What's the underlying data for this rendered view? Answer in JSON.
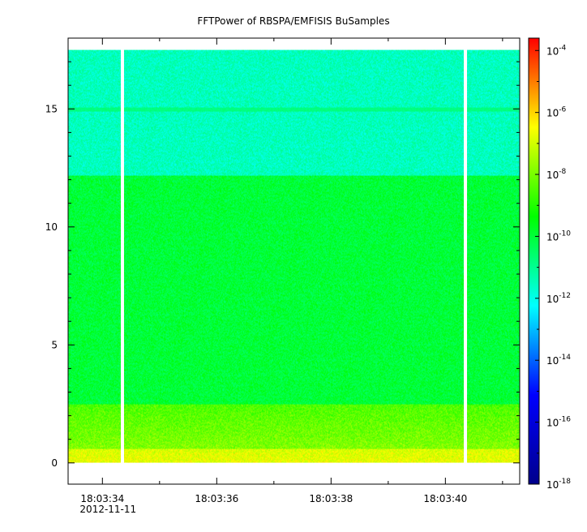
{
  "chart_data": {
    "type": "heatmap",
    "title": "FFTPower of RBSPA/EMFISIS  BuSamples",
    "xlabel": "",
    "ylabel": "",
    "x_ticks": [
      {
        "label": "18:03:34",
        "sublabel": "2012-11-11",
        "t": 34
      },
      {
        "label": "18:03:36",
        "t": 36
      },
      {
        "label": "18:03:38",
        "t": 38
      },
      {
        "label": "18:03:40",
        "t": 40
      }
    ],
    "xlim": [
      33.4,
      41.3
    ],
    "x_minor_ticks": [
      35,
      37,
      39,
      41
    ],
    "y_ticks": [
      0,
      5,
      10,
      15
    ],
    "ylim": [
      -0.9,
      18.0
    ],
    "data_extent": {
      "f_min": 0,
      "f_max": 17.5
    },
    "data_gaps": [
      34.35,
      40.35
    ],
    "colorbar": {
      "scale": "log",
      "range_exp": [
        -18,
        -3.6
      ],
      "ticks": [
        {
          "base": "10",
          "exp": "-4"
        },
        {
          "base": "10",
          "exp": "-6"
        },
        {
          "base": "10",
          "exp": "-8"
        },
        {
          "base": "10",
          "exp": "-10"
        },
        {
          "base": "10",
          "exp": "-12"
        },
        {
          "base": "10",
          "exp": "-14"
        },
        {
          "base": "10",
          "exp": "-16"
        },
        {
          "base": "10",
          "exp": "-18"
        }
      ],
      "colormap": [
        "#00008b",
        "#0000ff",
        "#00ffff",
        "#00ff00",
        "#ffff00",
        "#ff0000"
      ]
    },
    "spectrum_bands": [
      {
        "f_from": 12.2,
        "f_to": 17.5,
        "log_power": -11.5
      },
      {
        "f_from": 2.5,
        "f_to": 12.2,
        "log_power": -10.0
      },
      {
        "f_from": 0.6,
        "f_to": 2.5,
        "log_power": -8.5
      },
      {
        "f_from": 0.0,
        "f_to": 0.6,
        "log_power": -7.5
      }
    ],
    "spectral_line": {
      "f": 15.0,
      "log_power": -10.8
    }
  }
}
